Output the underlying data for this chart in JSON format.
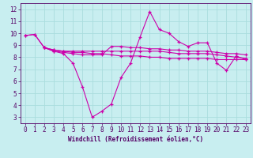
{
  "title": "",
  "xlabel": "Windchill (Refroidissement éolien,°C)",
  "ylabel": "",
  "bg_color": "#c8eef0",
  "grid_color": "#aadddd",
  "line_color": "#cc00aa",
  "xlim": [
    -0.5,
    23.5
  ],
  "ylim": [
    2.5,
    12.5
  ],
  "xticks": [
    0,
    1,
    2,
    3,
    4,
    5,
    6,
    7,
    8,
    9,
    10,
    11,
    12,
    13,
    14,
    15,
    16,
    17,
    18,
    19,
    20,
    21,
    22,
    23
  ],
  "yticks": [
    3,
    4,
    5,
    6,
    7,
    8,
    9,
    10,
    11,
    12
  ],
  "line1_x": [
    0,
    1,
    2,
    3,
    4,
    5,
    6,
    7,
    8,
    9,
    10,
    11,
    12,
    13,
    14,
    15,
    16,
    17,
    18,
    19,
    20,
    21,
    22,
    23
  ],
  "line1_y": [
    9.8,
    9.9,
    8.8,
    8.5,
    8.3,
    7.5,
    5.5,
    3.0,
    3.5,
    4.1,
    6.3,
    7.5,
    9.7,
    11.8,
    10.3,
    10.0,
    9.3,
    8.9,
    9.2,
    9.2,
    7.5,
    6.9,
    8.1,
    7.8
  ],
  "line2_x": [
    0,
    1,
    2,
    3,
    4,
    5,
    6,
    7,
    8,
    9,
    10,
    11,
    12,
    13,
    14,
    15,
    16,
    17,
    18,
    19,
    20,
    21,
    22,
    23
  ],
  "line2_y": [
    9.8,
    9.9,
    8.8,
    8.5,
    8.4,
    8.3,
    8.2,
    8.2,
    8.2,
    8.9,
    8.9,
    8.8,
    8.8,
    8.7,
    8.7,
    8.6,
    8.6,
    8.5,
    8.5,
    8.5,
    8.4,
    8.3,
    8.3,
    8.2
  ],
  "line3_x": [
    2,
    3,
    4,
    5,
    6,
    7,
    8,
    9,
    10,
    11,
    12,
    13,
    14,
    15,
    16,
    17,
    18,
    19,
    20,
    21,
    22,
    23
  ],
  "line3_y": [
    8.8,
    8.6,
    8.5,
    8.5,
    8.5,
    8.5,
    8.5,
    8.5,
    8.5,
    8.5,
    8.5,
    8.5,
    8.5,
    8.4,
    8.3,
    8.3,
    8.3,
    8.3,
    8.2,
    8.1,
    8.0,
    7.9
  ],
  "line4_x": [
    2,
    3,
    4,
    5,
    6,
    7,
    8,
    9,
    10,
    11,
    12,
    13,
    14,
    15,
    16,
    17,
    18,
    19,
    20,
    21,
    22,
    23
  ],
  "line4_y": [
    8.8,
    8.6,
    8.5,
    8.4,
    8.4,
    8.3,
    8.3,
    8.2,
    8.1,
    8.1,
    8.1,
    8.0,
    8.0,
    7.9,
    7.9,
    7.9,
    7.9,
    7.9,
    7.8,
    7.8,
    7.8,
    7.8
  ],
  "tick_fontsize": 5.5,
  "xlabel_fontsize": 5.5
}
